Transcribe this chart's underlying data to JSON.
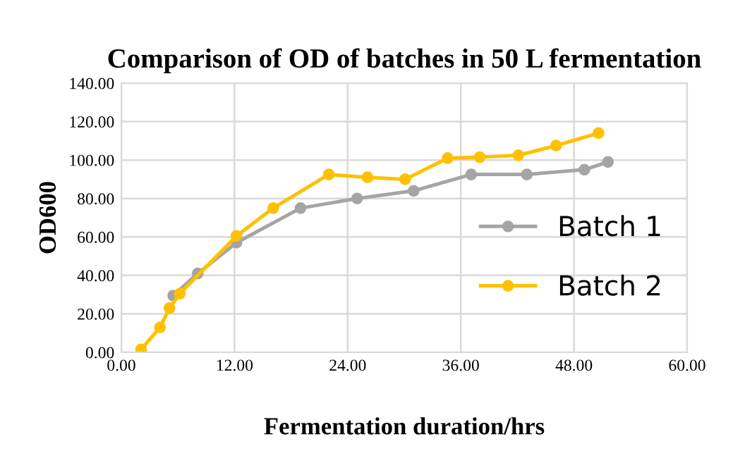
{
  "chart_data": {
    "type": "line",
    "title": "Comparison of OD of batches in 50 L fermentation",
    "xlabel": "Fermentation duration/hrs",
    "ylabel": "OD600",
    "xlim": [
      0,
      60
    ],
    "xticks": [
      {
        "value": 0,
        "label": "0.00"
      },
      {
        "value": 12,
        "label": "12.00"
      },
      {
        "value": 24,
        "label": "24.00"
      },
      {
        "value": 36,
        "label": "36.00"
      },
      {
        "value": 48,
        "label": "48.00"
      },
      {
        "value": 60,
        "label": "60.00"
      }
    ],
    "ylim": [
      0,
      140
    ],
    "yticks": [
      {
        "value": 0,
        "label": "0.00"
      },
      {
        "value": 20,
        "label": "20.00"
      },
      {
        "value": 40,
        "label": "40.00"
      },
      {
        "value": 60,
        "label": "60.00"
      },
      {
        "value": 80,
        "label": "80.00"
      },
      {
        "value": 100,
        "label": "100.00"
      },
      {
        "value": 120,
        "label": "120.00"
      },
      {
        "value": 140,
        "label": "140.00"
      }
    ],
    "grid": true,
    "legend": "right",
    "marker": "circle",
    "line_style": "solid",
    "series": [
      {
        "name": "Batch 1",
        "color": "#a5a5a5",
        "x": [
          5.5,
          8.1,
          12.2,
          19,
          25,
          31,
          37.1,
          43,
          49.1,
          51.6
        ],
        "values": [
          29.5,
          41,
          57,
          75,
          80,
          84,
          92.5,
          92.5,
          95,
          99
        ]
      },
      {
        "name": "Batch 2",
        "color": "#ffc000",
        "x": [
          2.1,
          4.1,
          5.1,
          6.2,
          12.2,
          16.1,
          22,
          26.1,
          30.1,
          34.6,
          38,
          42.1,
          46.1,
          50.6
        ],
        "values": [
          1.5,
          13,
          23,
          30.5,
          60.5,
          75,
          92.5,
          91,
          90,
          101,
          101.5,
          102.5,
          107.5,
          114
        ]
      }
    ]
  }
}
